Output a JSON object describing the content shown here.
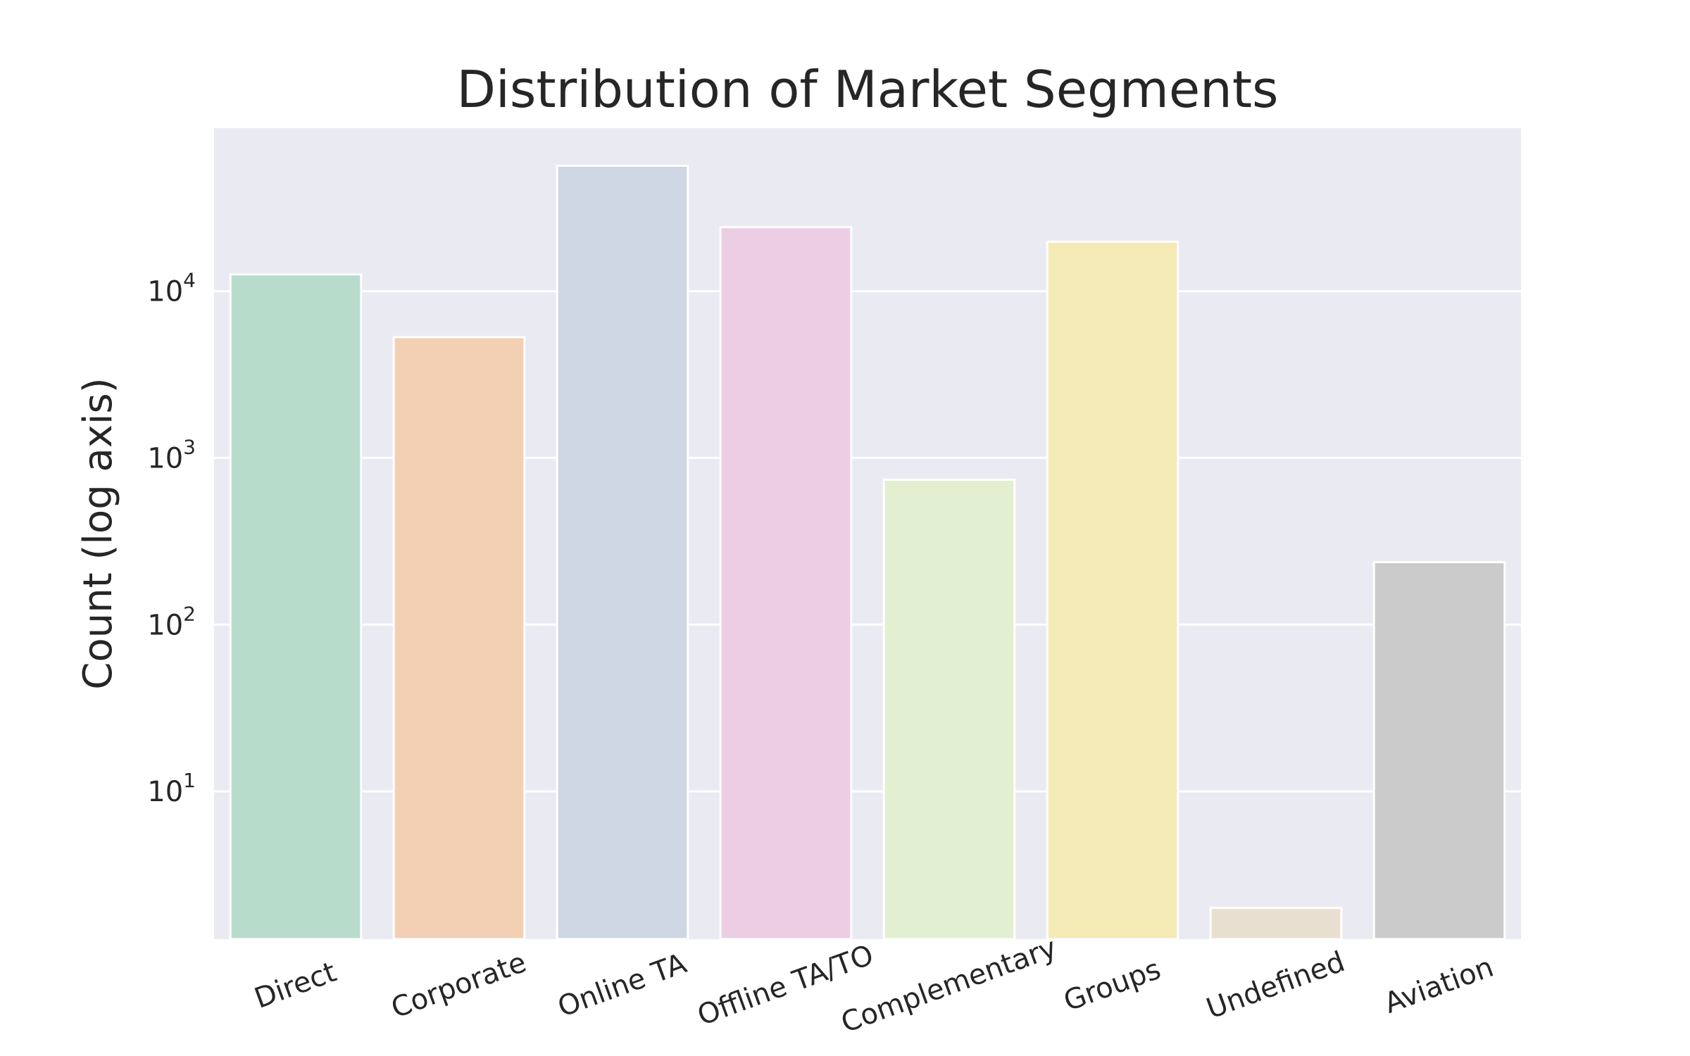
{
  "chart_data": {
    "type": "bar",
    "title": "Distribution of Market Segments",
    "xlabel": "",
    "ylabel": "Count (log axis)",
    "yscale": "log",
    "ylim": [
      1.3,
      95000
    ],
    "yticks": [
      {
        "value": 10,
        "base": "10",
        "exp": "1"
      },
      {
        "value": 100,
        "base": "10",
        "exp": "2"
      },
      {
        "value": 1000,
        "base": "10",
        "exp": "3"
      },
      {
        "value": 10000,
        "base": "10",
        "exp": "4"
      }
    ],
    "grid": true,
    "legend": "none",
    "categories": [
      "Direct",
      "Corporate",
      "Online TA",
      "Offline TA/TO",
      "Complementary",
      "Groups",
      "Undefined",
      "Aviation"
    ],
    "values": [
      12600,
      5300,
      56500,
      24200,
      740,
      19800,
      2,
      237
    ],
    "colors": [
      "#b8dccc",
      "#f3cfb4",
      "#cfd6e3",
      "#eccde3",
      "#e2efd1",
      "#f4eab6",
      "#e9dfd0",
      "#cbcbcb"
    ],
    "background_color": "#eaeaf2",
    "grid_color": "#ffffff"
  }
}
